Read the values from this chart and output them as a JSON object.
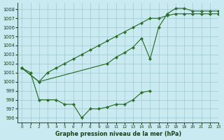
{
  "title": "Graphe pression niveau de la mer (hPa)",
  "background_color": "#c8eaf0",
  "grid_color": "#a0c8d0",
  "line_color": "#2d6e2a",
  "xlim": [
    -0.5,
    23
  ],
  "ylim": [
    995.5,
    1008.7
  ],
  "yticks": [
    996,
    997,
    998,
    999,
    1000,
    1001,
    1002,
    1003,
    1004,
    1005,
    1006,
    1007,
    1008
  ],
  "xticks": [
    0,
    1,
    2,
    3,
    4,
    5,
    6,
    7,
    8,
    9,
    10,
    11,
    12,
    13,
    14,
    15,
    16,
    17,
    18,
    19,
    20,
    21,
    22,
    23
  ],
  "series1_x": [
    0,
    1,
    2,
    3,
    4,
    5,
    6,
    7,
    8,
    9,
    10,
    11,
    12,
    13,
    14,
    15
  ],
  "series1_y": [
    1001.5,
    1001.0,
    998.0,
    998.0,
    998.0,
    997.5,
    997.5,
    996.0,
    997.0,
    997.0,
    997.2,
    997.5,
    997.5,
    998.0,
    998.8,
    999.0
  ],
  "series2_x": [
    0,
    2,
    3,
    4,
    5,
    6,
    7,
    8,
    9,
    10,
    11,
    12,
    13,
    14,
    15,
    16,
    17,
    18,
    19,
    20,
    21,
    22,
    23
  ],
  "series2_y": [
    1001.5,
    1000.0,
    1001.0,
    1001.5,
    1002.0,
    1002.5,
    1003.0,
    1003.5,
    1004.0,
    1004.5,
    1005.0,
    1005.5,
    1006.0,
    1006.5,
    1007.0,
    1007.0,
    1007.3,
    1007.5,
    1007.5,
    1007.5,
    1007.5,
    1007.5,
    1007.5
  ],
  "series3_x": [
    0,
    2,
    10,
    11,
    12,
    13,
    14,
    15,
    16,
    17,
    18,
    19,
    20,
    21,
    22,
    23
  ],
  "series3_y": [
    1001.5,
    1000.0,
    1002.0,
    1002.7,
    1003.2,
    1003.8,
    1004.8,
    1002.5,
    1006.0,
    1007.5,
    1008.1,
    1008.1,
    1007.8,
    1007.8,
    1007.8,
    1007.8
  ]
}
